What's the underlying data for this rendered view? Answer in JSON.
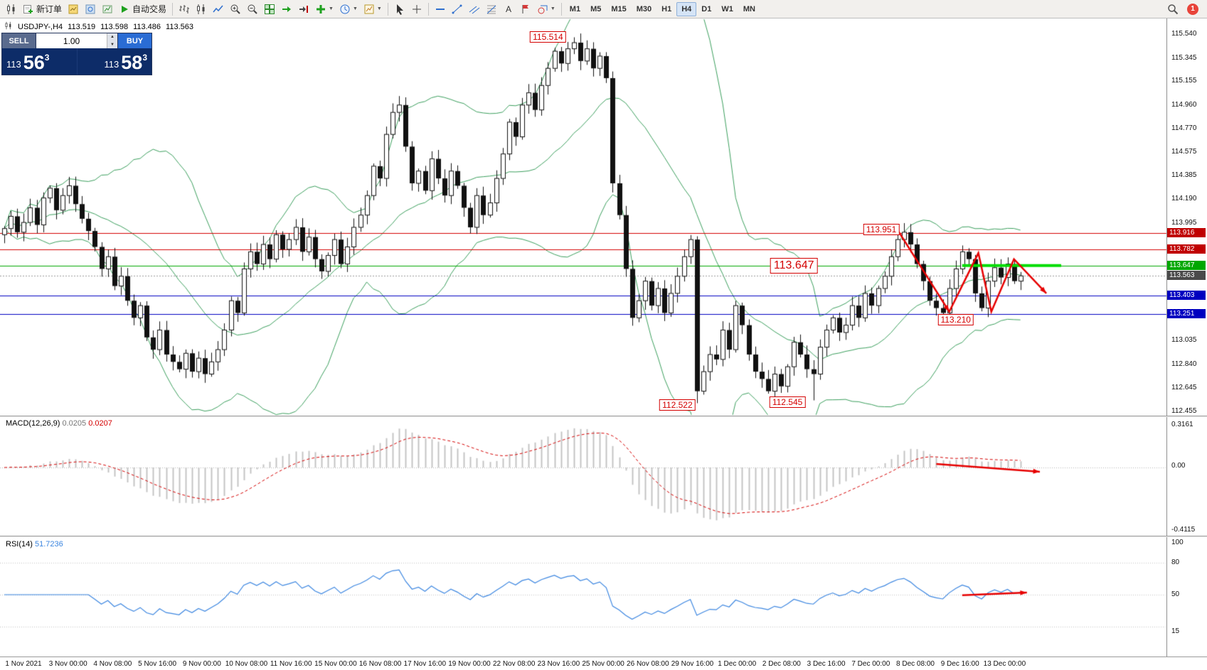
{
  "toolbar": {
    "buttons": [
      {
        "name": "new-chart-button",
        "icon": "candles"
      },
      {
        "name": "new-order-button",
        "icon": "neworder",
        "label": "新订单"
      },
      {
        "name": "market-watch-icon",
        "icon": "marketwatch"
      },
      {
        "name": "navigator-icon",
        "icon": "navigator"
      },
      {
        "name": "terminal-icon",
        "icon": "terminal"
      },
      {
        "name": "auto-trading-button",
        "icon": "autoplay",
        "label": "自动交易"
      },
      {
        "sep": true
      },
      {
        "name": "bar-chart-icon",
        "icon": "bars"
      },
      {
        "name": "candlestick-chart-icon",
        "icon": "candles"
      },
      {
        "name": "line-chart-icon",
        "icon": "linechart"
      },
      {
        "name": "zoom-in-icon",
        "icon": "zoomin"
      },
      {
        "name": "zoom-out-icon",
        "icon": "zoomout"
      },
      {
        "name": "tile-windows-icon",
        "icon": "tile"
      },
      {
        "name": "auto-scroll-icon",
        "icon": "autoscroll"
      },
      {
        "name": "chart-shift-icon",
        "icon": "shift"
      },
      {
        "name": "indicators-menu",
        "icon": "addind",
        "arrow": true
      },
      {
        "name": "periods-menu",
        "icon": "clock",
        "arrow": true
      },
      {
        "name": "templates-menu",
        "icon": "template",
        "arrow": true
      },
      {
        "sep": true
      },
      {
        "name": "cursor-tool",
        "icon": "cursor"
      },
      {
        "name": "crosshair-tool",
        "icon": "cross"
      },
      {
        "sep": true
      },
      {
        "name": "horizontal-line-tool",
        "icon": "hline"
      },
      {
        "name": "trendline-tool",
        "icon": "tline"
      },
      {
        "name": "channel-tool",
        "icon": "channel"
      },
      {
        "name": "fibonacci-tool",
        "icon": "fibo"
      },
      {
        "name": "text-tool",
        "icon": "textA"
      },
      {
        "name": "arrow-label-tool",
        "icon": "flag"
      },
      {
        "name": "shapes-menu",
        "icon": "shapes",
        "arrow": true
      },
      {
        "sep": true
      }
    ],
    "timeframes": [
      "M1",
      "M5",
      "M15",
      "M30",
      "H1",
      "H4",
      "D1",
      "W1",
      "MN"
    ],
    "active_timeframe": "H4",
    "notification_badge": "1"
  },
  "chart_header": {
    "symbol_period": "USDJPY-,H4",
    "open": "113.519",
    "high": "113.598",
    "low": "113.486",
    "close": "113.563"
  },
  "trade_panel": {
    "sell_label": "SELL",
    "buy_label": "BUY",
    "volume": "1.00",
    "sell_price_prefix": "113",
    "sell_price_big": "56",
    "sell_price_sup": "3",
    "buy_price_prefix": "113",
    "buy_price_big": "58",
    "buy_price_sup": "3"
  },
  "colors": {
    "bull": "#ffffff",
    "bear": "#111111",
    "wick": "#111111",
    "bollinger": "#3a9e5c",
    "macd_hist": "#c4c4c4",
    "macd_signal": "#d40000",
    "rsi_line": "#3c86e0",
    "arrow": "#e60000",
    "green_segment": "#00dd00"
  },
  "chart_data": {
    "type": "candlestick",
    "symbol": "USDJPY-",
    "period": "H4",
    "ylim": [
      112.455,
      115.54
    ],
    "first_open": 113.9,
    "closes": [
      113.95,
      114.05,
      113.92,
      114.0,
      114.12,
      113.98,
      114.2,
      114.28,
      114.1,
      114.22,
      114.3,
      114.15,
      114.03,
      113.93,
      113.8,
      113.62,
      113.72,
      113.48,
      113.56,
      113.36,
      113.22,
      113.32,
      113.06,
      112.96,
      113.12,
      112.92,
      112.86,
      112.8,
      112.93,
      112.78,
      112.89,
      112.76,
      112.86,
      112.96,
      113.12,
      113.36,
      113.26,
      113.62,
      113.76,
      113.66,
      113.82,
      113.7,
      113.9,
      113.78,
      113.86,
      113.96,
      113.76,
      113.88,
      113.7,
      113.6,
      113.73,
      113.86,
      113.66,
      113.8,
      113.96,
      114.06,
      114.22,
      114.46,
      114.36,
      114.72,
      114.9,
      114.96,
      114.62,
      114.32,
      114.42,
      114.26,
      114.52,
      114.36,
      114.22,
      114.42,
      114.3,
      114.12,
      113.96,
      114.22,
      114.06,
      114.16,
      114.36,
      114.56,
      114.82,
      114.7,
      114.96,
      115.06,
      114.92,
      115.12,
      115.26,
      115.4,
      115.3,
      115.42,
      115.47,
      115.32,
      115.42,
      115.26,
      115.36,
      115.18,
      114.32,
      114.06,
      113.62,
      113.22,
      113.36,
      113.52,
      113.32,
      113.46,
      113.26,
      113.42,
      113.56,
      113.72,
      113.86,
      112.62,
      112.78,
      112.92,
      112.88,
      113.12,
      112.96,
      113.32,
      113.16,
      112.92,
      112.78,
      112.72,
      112.62,
      112.76,
      112.66,
      112.82,
      113.02,
      112.92,
      112.8,
      112.76,
      112.98,
      113.12,
      113.22,
      113.1,
      113.16,
      113.32,
      113.22,
      113.42,
      113.32,
      113.46,
      113.56,
      113.72,
      113.86,
      113.92,
      113.82,
      113.66,
      113.52,
      113.36,
      113.3,
      113.26,
      113.46,
      113.62,
      113.76,
      113.7,
      113.42,
      113.3,
      113.52,
      113.63,
      113.55,
      113.66,
      113.52,
      113.563
    ],
    "wick_overrides": {
      "88": {
        "h": 115.514
      },
      "107": {
        "l": 112.522
      },
      "125": {
        "l": 112.545
      }
    },
    "bollinger": {
      "period": 20,
      "deviation": 2
    },
    "hlines": [
      {
        "price": 113.916,
        "color": "#d40000"
      },
      {
        "price": 113.782,
        "color": "#d40000"
      },
      {
        "price": 113.647,
        "color": "#00a800"
      },
      {
        "price": 113.563,
        "color": "#999999",
        "dash": [
          2,
          2
        ]
      },
      {
        "price": 113.403,
        "color": "#0000c0"
      },
      {
        "price": 113.251,
        "color": "#0000c0"
      }
    ],
    "green_segment": {
      "price": 113.647,
      "ci0": 148,
      "ci1": 163.3
    },
    "zigzag": [
      [
        138,
        113.94
      ],
      [
        146,
        113.27
      ],
      [
        150.5,
        113.75
      ],
      [
        152.5,
        113.27
      ],
      [
        156,
        113.7
      ],
      [
        161,
        113.42
      ]
    ],
    "annotations": [
      {
        "text": "115.514",
        "ci": 84,
        "price": 115.514,
        "big": false
      },
      {
        "text": "113.951",
        "ci": 135.5,
        "price": 113.945,
        "big": false
      },
      {
        "text": "113.647",
        "ci": 122,
        "price": 113.647,
        "big": true
      },
      {
        "text": "113.210",
        "ci": 147,
        "price": 113.205,
        "big": false
      },
      {
        "text": "112.522",
        "ci": 104,
        "price": 112.505,
        "big": false
      },
      {
        "text": "112.545",
        "ci": 121,
        "price": 112.53,
        "big": false
      }
    ],
    "price_axis_labels": [
      "115.540",
      "115.345",
      "115.155",
      "114.960",
      "114.770",
      "114.575",
      "114.385",
      "114.190",
      "113.995",
      "113.035",
      "112.840",
      "112.645",
      "112.455"
    ],
    "price_tags": [
      {
        "text": "113.916",
        "bg": "#c00000"
      },
      {
        "text": "113.782",
        "bg": "#c00000"
      },
      {
        "text": "113.647",
        "bg": "#00a800"
      },
      {
        "text": "113.563",
        "bg": "#4a4a4a"
      },
      {
        "text": "113.403",
        "bg": "#0000c0"
      },
      {
        "text": "113.251",
        "bg": "#0000c0"
      }
    ],
    "time_labels": [
      "1 Nov 2021",
      "3 Nov 00:00",
      "4 Nov 08:00",
      "5 Nov 16:00",
      "9 Nov 00:00",
      "10 Nov 08:00",
      "11 Nov 16:00",
      "15 Nov 00:00",
      "16 Nov 08:00",
      "17 Nov 16:00",
      "19 Nov 00:00",
      "22 Nov 08:00",
      "23 Nov 16:00",
      "25 Nov 00:00",
      "26 Nov 08:00",
      "29 Nov 16:00",
      "1 Dec 00:00",
      "2 Dec 08:00",
      "3 Dec 16:00",
      "7 Dec 00:00",
      "8 Dec 08:00",
      "9 Dec 16:00",
      "13 Dec 00:00"
    ],
    "macd": {
      "name": "MACD(12,26,9)",
      "value_main": "0.0205",
      "value_signal": "0.0207",
      "fast": 12,
      "slow": 26,
      "signal": 9,
      "axis": [
        "0.3161",
        "0.00",
        "-0.4115"
      ],
      "arrow": [
        [
          144,
          0.03
        ],
        [
          160,
          -0.035
        ]
      ]
    },
    "rsi": {
      "name": "RSI(14)",
      "value": "51.7236",
      "period": 14,
      "axis": [
        "100",
        "80",
        "50",
        "15"
      ],
      "levels": [
        80,
        50,
        20
      ],
      "arrow": [
        [
          148,
          49.5
        ],
        [
          158,
          52
        ]
      ]
    }
  }
}
